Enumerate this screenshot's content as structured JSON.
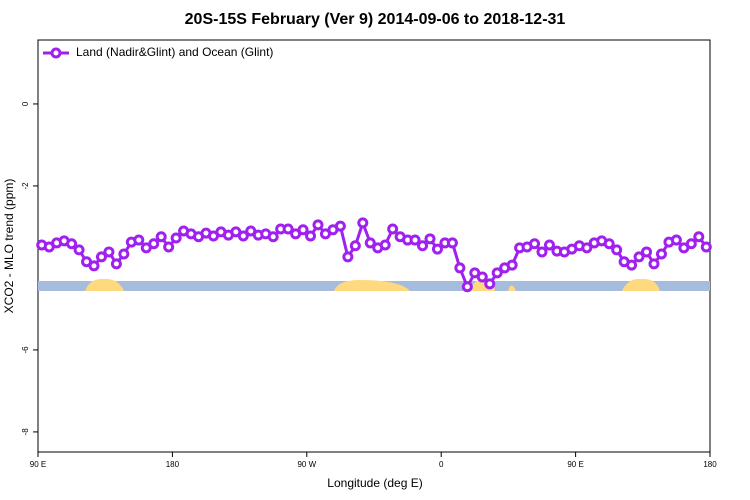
{
  "chart_data": {
    "type": "line",
    "title": "20S-15S February (Ver 9)   2014-09-06 to 2018-12-31",
    "x_label": "Longitude (deg E)",
    "y_label": "XCO2 - MLO trend (ppm)",
    "legend": "top-left",
    "xlim": [
      90,
      540
    ],
    "xticks": [
      {
        "value": 90,
        "label": "90 E"
      },
      180,
      {
        "value": 270,
        "label": "90 W"
      },
      {
        "value": 360,
        "label": "0"
      },
      {
        "value": 450,
        "label": "90 E"
      },
      {
        "value": 540,
        "label": "180"
      }
    ],
    "ylim": [
      -8.49,
      1.56
    ],
    "yticks": [
      0,
      -2,
      -6,
      -8
    ],
    "x": [
      92.5,
      97.5,
      102.5,
      107.5,
      112.5,
      117.5,
      122.5,
      127.5,
      132.5,
      137.5,
      142.5,
      147.5,
      152.5,
      157.5,
      162.5,
      167.5,
      172.5,
      177.5,
      182.5,
      187.5,
      192.5,
      197.5,
      202.5,
      207.5,
      212.5,
      217.5,
      222.5,
      227.5,
      232.5,
      237.5,
      242.5,
      247.5,
      252.5,
      257.5,
      262.5,
      267.5,
      272.5,
      277.5,
      282.5,
      287.5,
      292.5,
      297.5,
      302.5,
      307.5,
      312.5,
      317.5,
      322.5,
      327.5,
      332.5,
      337.5,
      342.5,
      347.5,
      352.5,
      357.5,
      362.5,
      367.5,
      372.5,
      377.5,
      382.5,
      387.5,
      392.5,
      397.5,
      402.5,
      407.5,
      412.5,
      417.5,
      422.5,
      427.5,
      432.5,
      437.5,
      442.5,
      447.5,
      452.5,
      457.5,
      462.5,
      467.5,
      472.5,
      477.5,
      482.5,
      487.5,
      492.5,
      497.5,
      502.5,
      507.5,
      512.5,
      517.5,
      522.5,
      527.5,
      532.5,
      537.5
    ],
    "series": [
      {
        "name": "Land (Nadir&Glint) and Ocean (Glint)",
        "color": "#a020f0",
        "values": [
          -3.44,
          -3.49,
          -3.39,
          -3.34,
          -3.41,
          -3.56,
          -3.85,
          -3.95,
          -3.73,
          -3.61,
          -3.9,
          -3.66,
          -3.37,
          -3.32,
          -3.51,
          -3.41,
          -3.24,
          -3.49,
          -3.27,
          -3.1,
          -3.17,
          -3.24,
          -3.15,
          -3.22,
          -3.12,
          -3.2,
          -3.12,
          -3.22,
          -3.1,
          -3.2,
          -3.17,
          -3.24,
          -3.05,
          -3.05,
          -3.17,
          -3.07,
          -3.22,
          -2.95,
          -3.17,
          -3.07,
          -2.98,
          -3.73,
          -3.46,
          -2.9,
          -3.39,
          -3.51,
          -3.44,
          -3.05,
          -3.24,
          -3.32,
          -3.32,
          -3.46,
          -3.29,
          -3.54,
          -3.39,
          -3.39,
          -4.0,
          -4.46,
          -4.12,
          -4.22,
          -4.39,
          -4.12,
          -4.0,
          -3.93,
          -3.51,
          -3.49,
          -3.41,
          -3.61,
          -3.44,
          -3.59,
          -3.61,
          -3.54,
          -3.46,
          -3.51,
          -3.39,
          -3.34,
          -3.41,
          -3.56,
          -3.85,
          -3.93,
          -3.73,
          -3.61,
          -3.9,
          -3.66,
          -3.37,
          -3.32,
          -3.51,
          -3.41,
          -3.24,
          -3.49
        ]
      }
    ]
  }
}
